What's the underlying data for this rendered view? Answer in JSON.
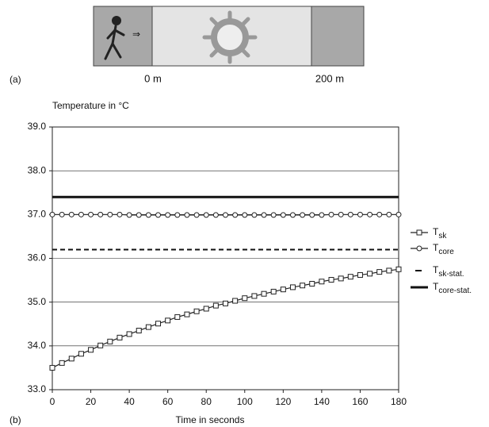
{
  "figure": {
    "panel_a": {
      "label": "(a)",
      "start": "0 m",
      "end": "200 m"
    },
    "panel_b_label": "(b)"
  },
  "chart_data": {
    "type": "line",
    "y_label": "Temperature in °C",
    "x_label": "Time in seconds",
    "x": [
      0,
      5,
      10,
      15,
      20,
      25,
      30,
      35,
      40,
      45,
      50,
      55,
      60,
      65,
      70,
      75,
      80,
      85,
      90,
      95,
      100,
      105,
      110,
      115,
      120,
      125,
      130,
      135,
      140,
      145,
      150,
      155,
      160,
      165,
      170,
      175,
      180
    ],
    "xlim": [
      0,
      180
    ],
    "xticks": [
      0,
      20,
      40,
      60,
      80,
      100,
      120,
      140,
      160,
      180
    ],
    "ylim": [
      33,
      39
    ],
    "yticks": [
      {
        "value": 33,
        "label": "33.0"
      },
      {
        "value": 34,
        "label": "34.0"
      },
      {
        "value": 35,
        "label": "35.0"
      },
      {
        "value": 36,
        "label": "36.0"
      },
      {
        "value": 37,
        "label": "37.0"
      },
      {
        "value": 38,
        "label": "38.0"
      },
      {
        "value": 39,
        "label": "39.0"
      }
    ],
    "grid": true,
    "legend": "right",
    "series": [
      {
        "name": "T",
        "subscript": "sk",
        "color": "#222",
        "marker": "square",
        "values": [
          33.5,
          33.61,
          33.71,
          33.82,
          33.91,
          34.01,
          34.1,
          34.19,
          34.27,
          34.35,
          34.43,
          34.51,
          34.58,
          34.66,
          34.72,
          34.79,
          34.85,
          34.92,
          34.97,
          35.03,
          35.09,
          35.14,
          35.19,
          35.24,
          35.29,
          35.34,
          35.38,
          35.42,
          35.47,
          35.51,
          35.54,
          35.58,
          35.62,
          35.65,
          35.69,
          35.72,
          35.75
        ]
      },
      {
        "name": "T",
        "subscript": "core",
        "color": "#222",
        "marker": "circle",
        "values": [
          37.0,
          37.0,
          37.0,
          37.0,
          37.0,
          37.0,
          37.0,
          37.0,
          36.99,
          36.99,
          36.99,
          36.99,
          36.99,
          36.99,
          36.99,
          36.99,
          36.99,
          36.99,
          36.99,
          36.99,
          36.99,
          36.99,
          36.99,
          36.99,
          36.99,
          36.99,
          36.99,
          36.99,
          36.99,
          37.0,
          37.0,
          37.0,
          37.0,
          37.0,
          37.0,
          37.0,
          37.0
        ]
      },
      {
        "name": "T",
        "subscript": "sk-stat.",
        "color": "#111",
        "style": "dashed",
        "value": 36.2
      },
      {
        "name": "T",
        "subscript": "core-stat.",
        "color": "#111",
        "style": "thick",
        "value": 37.4
      }
    ]
  }
}
